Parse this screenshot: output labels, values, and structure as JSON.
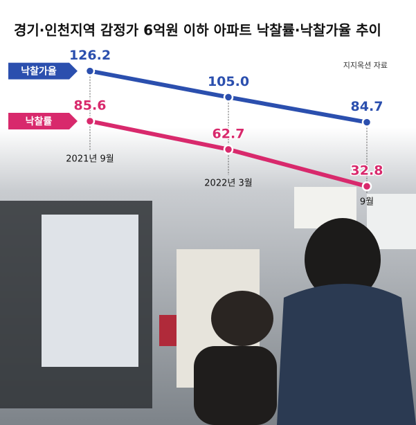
{
  "chart_data": {
    "type": "line",
    "title": "경기·인천지역 감정가 6억원 이하 아파트 낙찰률·낙찰가율 추이",
    "source": "지지옥션 자료",
    "categories": [
      "2021년 9월",
      "2022년 3월",
      "9월"
    ],
    "series": [
      {
        "name": "낙찰가율",
        "color": "#2b4fae",
        "values": [
          126.2,
          105.0,
          84.7
        ],
        "value_labels": [
          "126.2",
          "105.0",
          "84.7"
        ]
      },
      {
        "name": "낙찰률",
        "color": "#d8296c",
        "values": [
          85.6,
          62.7,
          32.8
        ],
        "value_labels": [
          "85.6",
          "62.7",
          "32.8"
        ]
      }
    ],
    "ylim": [
      20,
      140
    ]
  }
}
